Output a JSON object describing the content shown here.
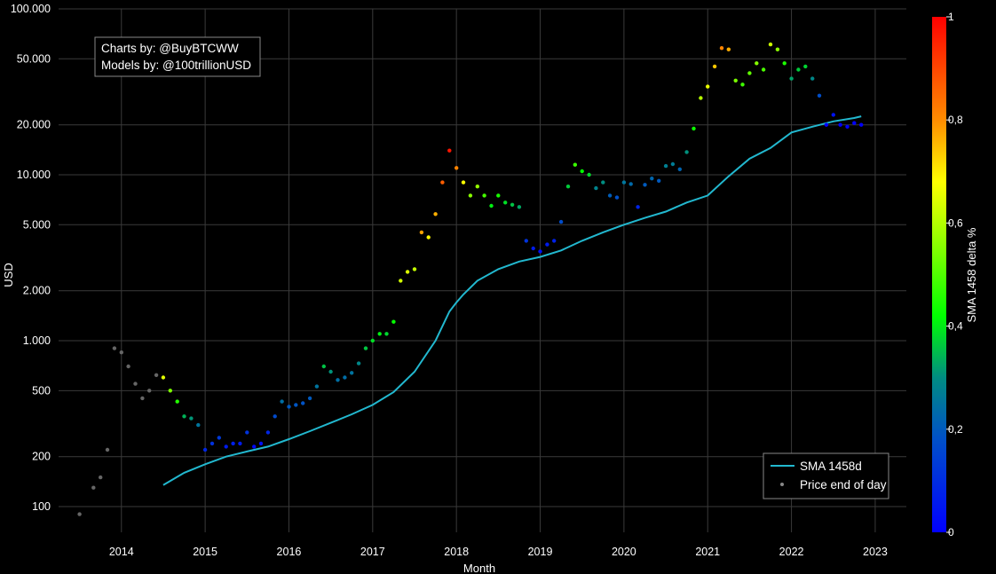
{
  "chart_data": {
    "type": "scatter",
    "xlabel": "Month",
    "ylabel": "USD",
    "x_tick_labels": [
      "2014",
      "2015",
      "2016",
      "2017",
      "2018",
      "2019",
      "2020",
      "2021",
      "2022",
      "2023"
    ],
    "y_scale": "log",
    "y_tick_labels": [
      "100",
      "200",
      "500",
      "1.000",
      "2.000",
      "5.000",
      "10.000",
      "20.000",
      "50.000",
      "100.000"
    ],
    "y_tick_values": [
      100,
      200,
      500,
      1000,
      2000,
      5000,
      10000,
      20000,
      50000,
      100000
    ],
    "ylim": [
      70,
      100000
    ],
    "xlim": [
      "2013-04-01",
      "2023-05-15"
    ],
    "grid": true,
    "annotation": {
      "line1": "Charts by: @BuyBTCWW",
      "line2": "Models by: @100trillionUSD"
    },
    "legend": {
      "position": "bottom-right",
      "items": [
        {
          "label": "SMA 1458d",
          "color": "#22b8cf"
        },
        {
          "label": "Price end of day",
          "color": "#888888"
        }
      ]
    },
    "colorbar": {
      "label": "SMA 1458 delta %",
      "range": [
        0,
        1
      ],
      "tick_labels": [
        "0",
        "0,2",
        "0,4",
        "0,6",
        "0,8",
        "1"
      ],
      "tick_values": [
        0,
        0.2,
        0.4,
        0.6,
        0.8,
        1
      ],
      "colors": [
        "#0000ff",
        "#00ff00",
        "#ffff00",
        "#ff0000"
      ]
    },
    "series": [
      {
        "name": "SMA 1458d",
        "color": "#22b8cf",
        "x": [
          "2014-07",
          "2014-10",
          "2015-01",
          "2015-04",
          "2015-07",
          "2015-10",
          "2016-01",
          "2016-04",
          "2016-07",
          "2016-10",
          "2017-01",
          "2017-04",
          "2017-07",
          "2017-10",
          "2017-12",
          "2018-01",
          "2018-02",
          "2018-04",
          "2018-07",
          "2018-10",
          "2019-01",
          "2019-04",
          "2019-07",
          "2019-10",
          "2020-01",
          "2020-04",
          "2020-07",
          "2020-10",
          "2021-01",
          "2021-04",
          "2021-07",
          "2021-10",
          "2022-01",
          "2022-04",
          "2022-07",
          "2022-10",
          "2022-11"
        ],
        "y": [
          135,
          160,
          180,
          200,
          215,
          230,
          255,
          285,
          320,
          360,
          410,
          490,
          650,
          1000,
          1500,
          1700,
          1900,
          2300,
          2700,
          3000,
          3200,
          3500,
          4000,
          4500,
          5000,
          5500,
          6000,
          6800,
          7500,
          9800,
          12500,
          14500,
          18000,
          19500,
          21000,
          22000,
          22500
        ]
      },
      {
        "name": "Price end of day",
        "x": [
          "2013-07",
          "2013-09",
          "2013-10",
          "2013-11",
          "2013-12",
          "2014-01",
          "2014-02",
          "2014-03",
          "2014-04",
          "2014-05",
          "2014-06",
          "2014-07",
          "2014-08",
          "2014-09",
          "2014-10",
          "2014-11",
          "2014-12",
          "2015-01",
          "2015-02",
          "2015-03",
          "2015-04",
          "2015-05",
          "2015-06",
          "2015-07",
          "2015-08",
          "2015-09",
          "2015-10",
          "2015-11",
          "2015-12",
          "2016-01",
          "2016-02",
          "2016-03",
          "2016-04",
          "2016-05",
          "2016-06",
          "2016-07",
          "2016-08",
          "2016-09",
          "2016-10",
          "2016-11",
          "2016-12",
          "2017-01",
          "2017-02",
          "2017-03",
          "2017-04",
          "2017-05",
          "2017-06",
          "2017-07",
          "2017-08",
          "2017-09",
          "2017-10",
          "2017-11",
          "2017-12",
          "2018-01",
          "2018-02",
          "2018-03",
          "2018-04",
          "2018-05",
          "2018-06",
          "2018-07",
          "2018-08",
          "2018-09",
          "2018-10",
          "2018-11",
          "2018-12",
          "2019-01",
          "2019-02",
          "2019-03",
          "2019-04",
          "2019-05",
          "2019-06",
          "2019-07",
          "2019-08",
          "2019-09",
          "2019-10",
          "2019-11",
          "2019-12",
          "2020-01",
          "2020-02",
          "2020-03",
          "2020-04",
          "2020-05",
          "2020-06",
          "2020-07",
          "2020-08",
          "2020-09",
          "2020-10",
          "2020-11",
          "2020-12",
          "2021-01",
          "2021-02",
          "2021-03",
          "2021-04",
          "2021-05",
          "2021-06",
          "2021-07",
          "2021-08",
          "2021-09",
          "2021-10",
          "2021-11",
          "2021-12",
          "2022-01",
          "2022-02",
          "2022-03",
          "2022-04",
          "2022-05",
          "2022-06",
          "2022-07",
          "2022-08",
          "2022-09",
          "2022-10",
          "2022-11"
        ],
        "y": [
          90,
          130,
          150,
          220,
          900,
          850,
          700,
          550,
          450,
          500,
          620,
          600,
          500,
          430,
          350,
          340,
          310,
          220,
          240,
          260,
          230,
          240,
          240,
          280,
          230,
          240,
          280,
          350,
          430,
          400,
          410,
          420,
          450,
          530,
          700,
          650,
          580,
          600,
          640,
          730,
          900,
          1000,
          1100,
          1100,
          1300,
          2300,
          2600,
          2700,
          4500,
          4200,
          5800,
          9000,
          14000,
          11000,
          9000,
          7500,
          8500,
          7500,
          6500,
          7500,
          6800,
          6600,
          6400,
          4000,
          3600,
          3450,
          3800,
          4000,
          5200,
          8500,
          11500,
          10500,
          10000,
          8300,
          9000,
          7500,
          7300,
          9000,
          8800,
          6400,
          8700,
          9500,
          9200,
          11300,
          11600,
          10800,
          13700,
          19000,
          29000,
          34000,
          45000,
          58000,
          57000,
          37000,
          35000,
          41000,
          47000,
          43000,
          61000,
          57000,
          47000,
          38000,
          43000,
          45000,
          38000,
          30000,
          20000,
          23000,
          20000,
          19500,
          20500,
          20000
        ]
      }
    ]
  }
}
